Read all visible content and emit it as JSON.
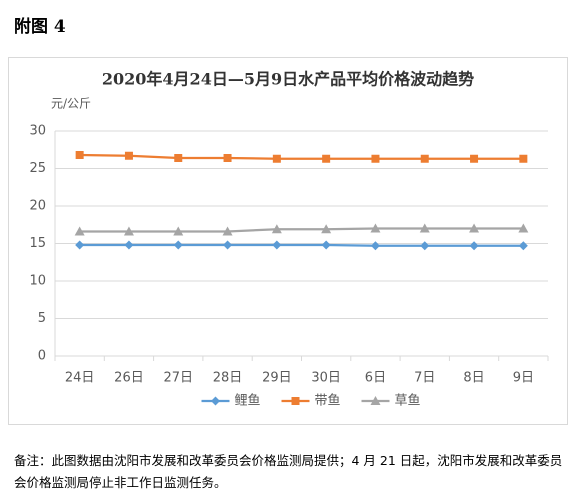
{
  "heading": "附图 4",
  "chart_data": {
    "type": "line",
    "title": "2020年4月24日—5月9日水产品平均价格波动趋势",
    "ylabel": "元/公斤",
    "categories": [
      "24日",
      "26日",
      "27日",
      "28日",
      "29日",
      "30日",
      "6日",
      "7日",
      "8日",
      "9日"
    ],
    "series": [
      {
        "name": "鲤鱼",
        "color": "#5b9bd5",
        "marker": "diamond",
        "values": [
          14.8,
          14.8,
          14.8,
          14.8,
          14.8,
          14.8,
          14.7,
          14.7,
          14.7,
          14.7
        ]
      },
      {
        "name": "带鱼",
        "color": "#ed7d31",
        "marker": "square",
        "values": [
          26.8,
          26.7,
          26.4,
          26.4,
          26.3,
          26.3,
          26.3,
          26.3,
          26.3,
          26.3
        ]
      },
      {
        "name": "草鱼",
        "color": "#a5a5a5",
        "marker": "triangle",
        "values": [
          16.6,
          16.6,
          16.6,
          16.6,
          16.9,
          16.9,
          17.0,
          17.0,
          17.0,
          17.0
        ]
      }
    ],
    "ylim": [
      0,
      30
    ],
    "yticks": [
      0,
      5,
      10,
      15,
      20,
      25,
      30
    ],
    "grid": true,
    "legend": "bottom"
  },
  "note": "备注：此图数据由沈阳市发展和改革委员会价格监测局提供；4 月 21 日起，沈阳市发展和改革委员会价格监测局停止非工作日监测任务。"
}
